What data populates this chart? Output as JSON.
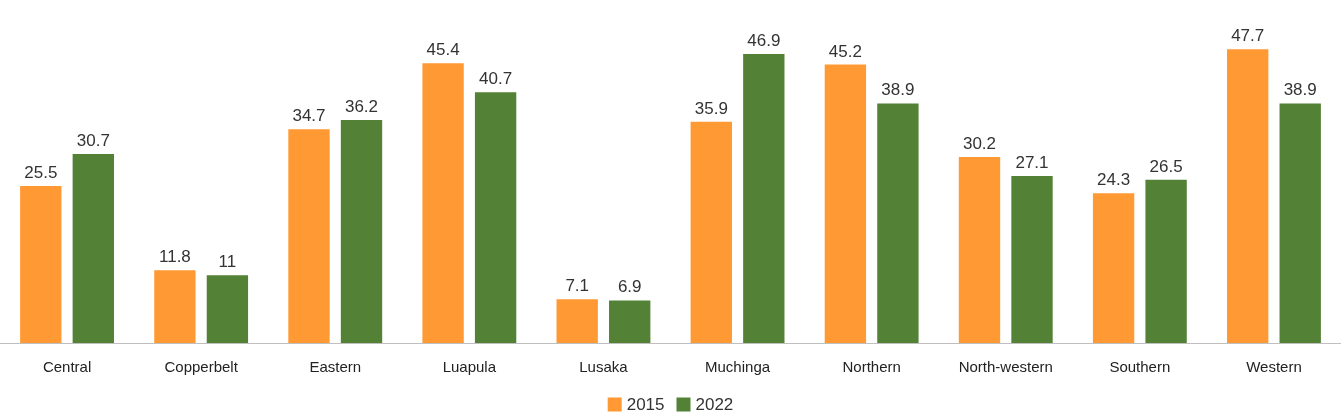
{
  "chart_data": {
    "type": "bar",
    "categories": [
      "Central",
      "Copperbelt",
      "Eastern",
      "Luapula",
      "Lusaka",
      "Muchinga",
      "Northern",
      "North-western",
      "Southern",
      "Western"
    ],
    "series": [
      {
        "name": "2015",
        "color": "#ff9933",
        "values": [
          25.5,
          11.8,
          34.7,
          45.4,
          7.1,
          35.9,
          45.2,
          30.2,
          24.3,
          47.7
        ]
      },
      {
        "name": "2022",
        "color": "#538135",
        "values": [
          30.7,
          11,
          36.2,
          40.7,
          6.9,
          46.9,
          38.9,
          27.1,
          26.5,
          38.9
        ]
      }
    ],
    "data_labels": true,
    "legend": "bottom"
  }
}
